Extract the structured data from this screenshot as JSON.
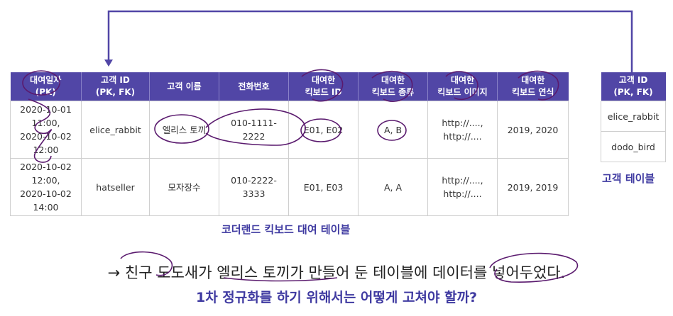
{
  "main_table": {
    "headers": [
      [
        "대여일자",
        "(PK)"
      ],
      [
        "고객 ID",
        "(PK, FK)"
      ],
      [
        "고객 이름"
      ],
      [
        "전화번호"
      ],
      [
        "대여한",
        "킥보드 ID"
      ],
      [
        "대여한",
        "킥보드 종류"
      ],
      [
        "대여한",
        "킥보드 이미지"
      ],
      [
        "대여한",
        "킥보드 연식"
      ]
    ],
    "rows": [
      [
        [
          "2020-10-01",
          "11:00,",
          "2020-10-02",
          "12:00"
        ],
        [
          "elice_rabbit"
        ],
        [
          "엘리스 토끼"
        ],
        [
          "010-1111-",
          "2222"
        ],
        [
          "E01, E02"
        ],
        [
          "A, B"
        ],
        [
          "http://....,",
          "http://...."
        ],
        [
          "2019, 2020"
        ]
      ],
      [
        [
          "2020-10-02",
          "12:00,",
          "2020-10-02",
          "14:00"
        ],
        [
          "hatseller"
        ],
        [
          "모자장수"
        ],
        [
          "010-2222-",
          "3333"
        ],
        [
          "E01, E03"
        ],
        [
          "A, A"
        ],
        [
          "http://....,",
          "http://...."
        ],
        [
          "2019, 2019"
        ]
      ]
    ],
    "caption": "코더랜드 킥보드 대여 테이블"
  },
  "side_table": {
    "header": [
      "고객 ID",
      "(PK, FK)"
    ],
    "rows": [
      "elice_rabbit",
      "dodo_bird"
    ],
    "caption": "고객 테이블"
  },
  "statement": "→ 친구 도도새가 엘리스 토끼가 만들어 둔 테이블에 데이터를 넣어두었다.",
  "question": "1차 정규화를 하기 위해서는 어떻게 고쳐야 할까?",
  "colors": {
    "header_bg": "#5146a6",
    "accent": "#3f3aa1",
    "annotation": "#5a1a6e"
  }
}
